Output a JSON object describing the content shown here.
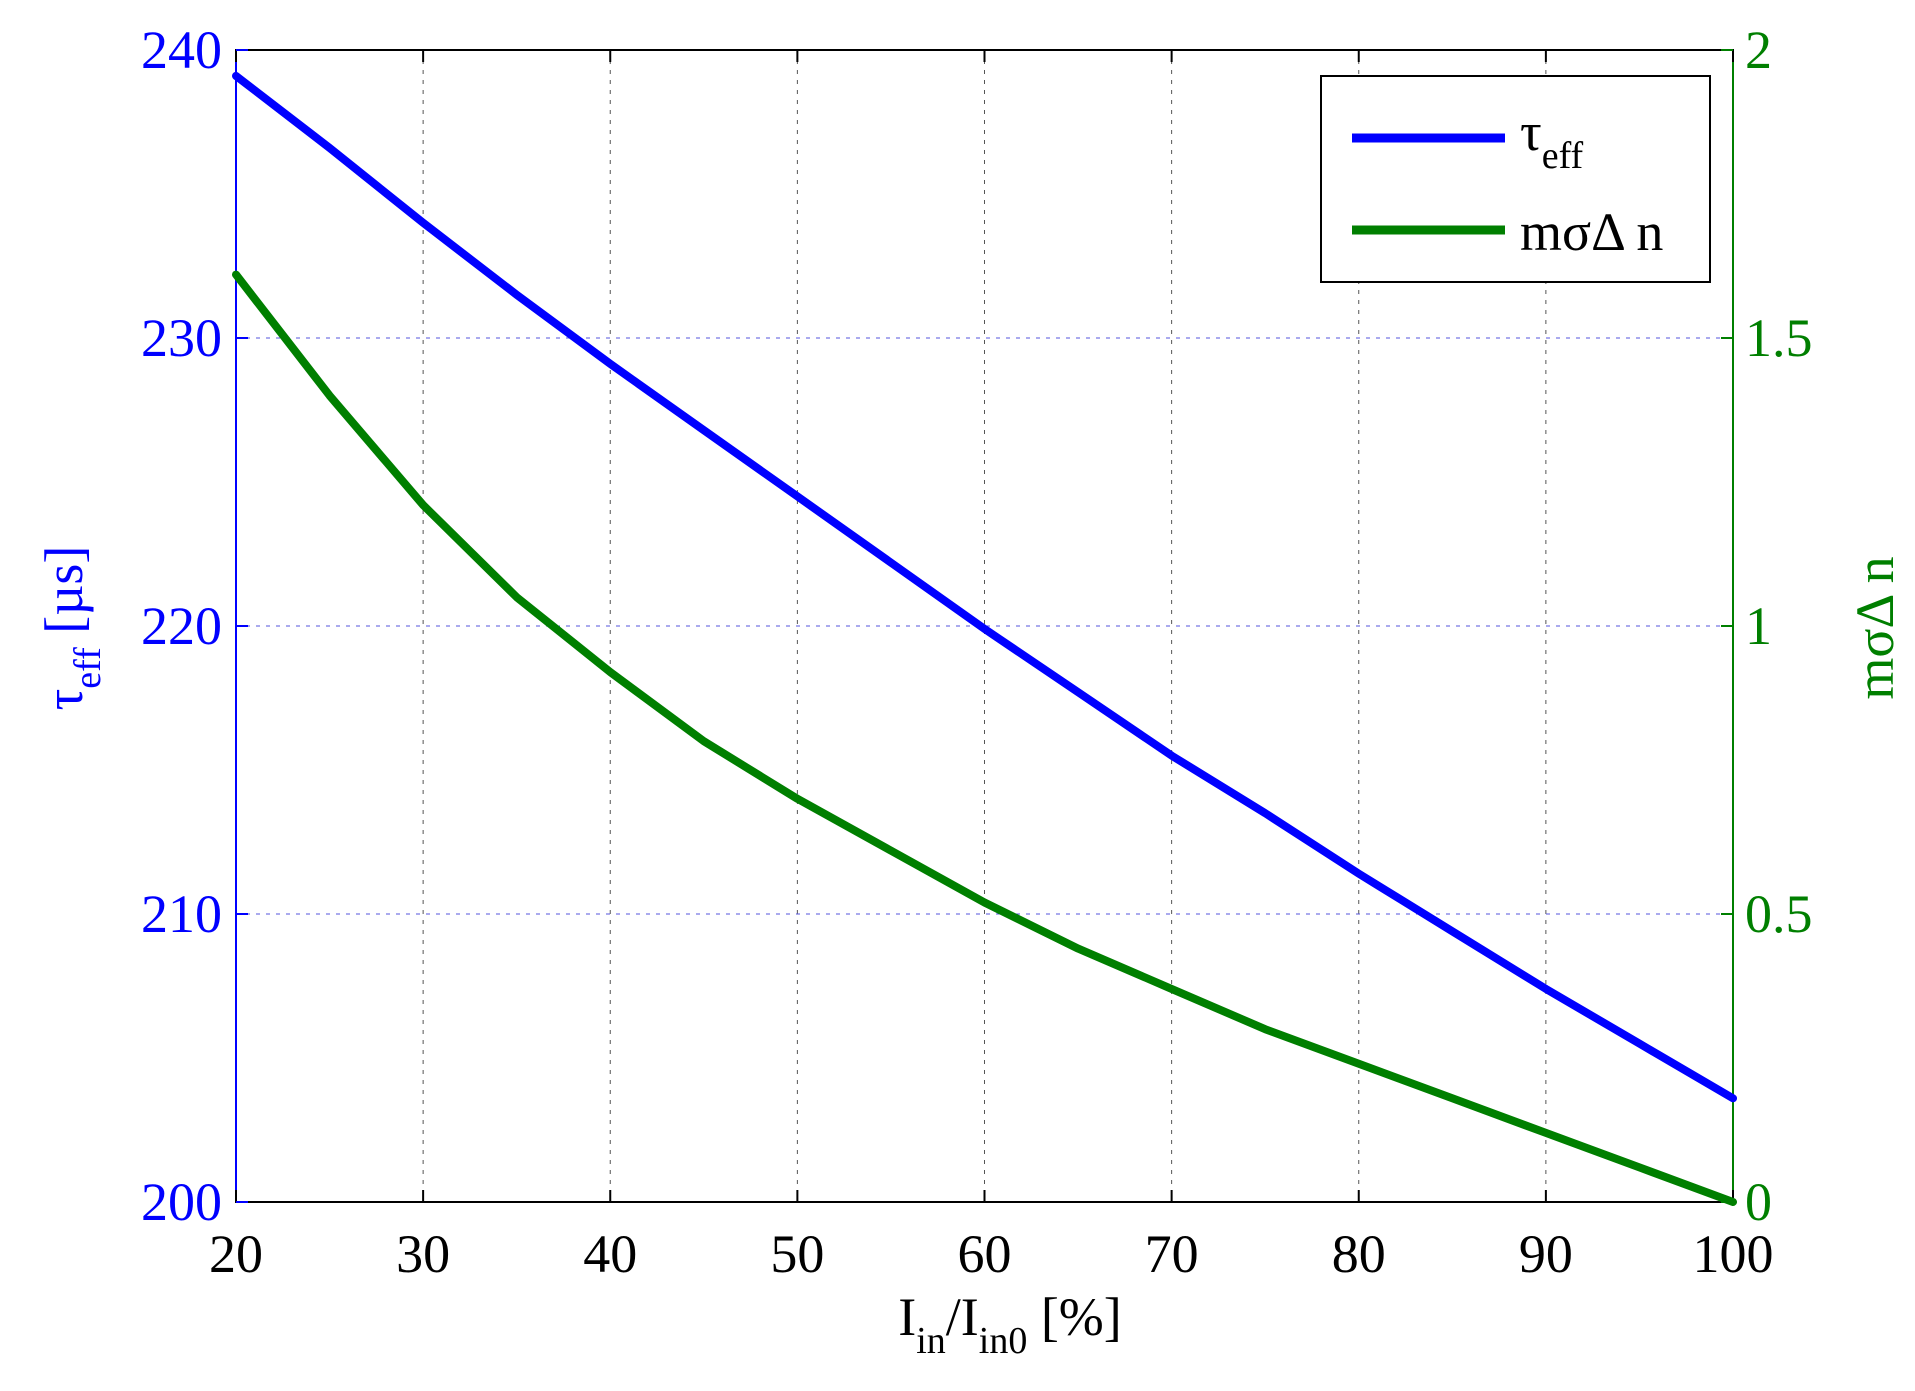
{
  "chart_data": {
    "type": "line",
    "colors": {
      "left_axis": "#0000ff",
      "right_axis": "#007f00",
      "x_axis": "#000000"
    },
    "grid": true,
    "legend_position": "top-right",
    "x": [
      20,
      25,
      30,
      35,
      40,
      45,
      50,
      55,
      60,
      65,
      70,
      75,
      80,
      85,
      90,
      95,
      100
    ],
    "xlim": [
      20,
      100
    ],
    "xticks": [
      "20",
      "30",
      "40",
      "50",
      "60",
      "70",
      "80",
      "90",
      "100"
    ],
    "xlabel": {
      "main": "I",
      "sub1": "in",
      "mid": "/I",
      "sub2": "in0",
      "tail": " [%]"
    },
    "left_axis": {
      "ylim": [
        200,
        240
      ],
      "ticks": [
        "200",
        "210",
        "220",
        "230",
        "240"
      ],
      "label": {
        "main": "τ",
        "sub": "eff",
        "tail": " [µs]"
      },
      "color": "#0000ff"
    },
    "right_axis": {
      "ylim": [
        0,
        2
      ],
      "ticks": [
        "0",
        "0.5",
        "1",
        "1.5",
        "2"
      ],
      "label": "mσΔ n",
      "color": "#007f00"
    },
    "series": [
      {
        "name": "τeff",
        "legend_main": "τ",
        "legend_sub": "eff",
        "axis": "left",
        "color": "#0000ff",
        "values": [
          239.1,
          236.6,
          234.0,
          231.5,
          229.1,
          226.8,
          224.5,
          222.2,
          219.9,
          217.7,
          215.5,
          213.5,
          211.4,
          209.4,
          207.4,
          205.5,
          203.6
        ]
      },
      {
        "name": "mσΔ n",
        "legend_main": "mσΔ n",
        "legend_sub": "",
        "axis": "right",
        "color": "#007f00",
        "values": [
          1.61,
          1.4,
          1.21,
          1.05,
          0.92,
          0.8,
          0.7,
          0.61,
          0.52,
          0.44,
          0.37,
          0.3,
          0.24,
          0.18,
          0.12,
          0.06,
          0.0
        ]
      }
    ]
  }
}
